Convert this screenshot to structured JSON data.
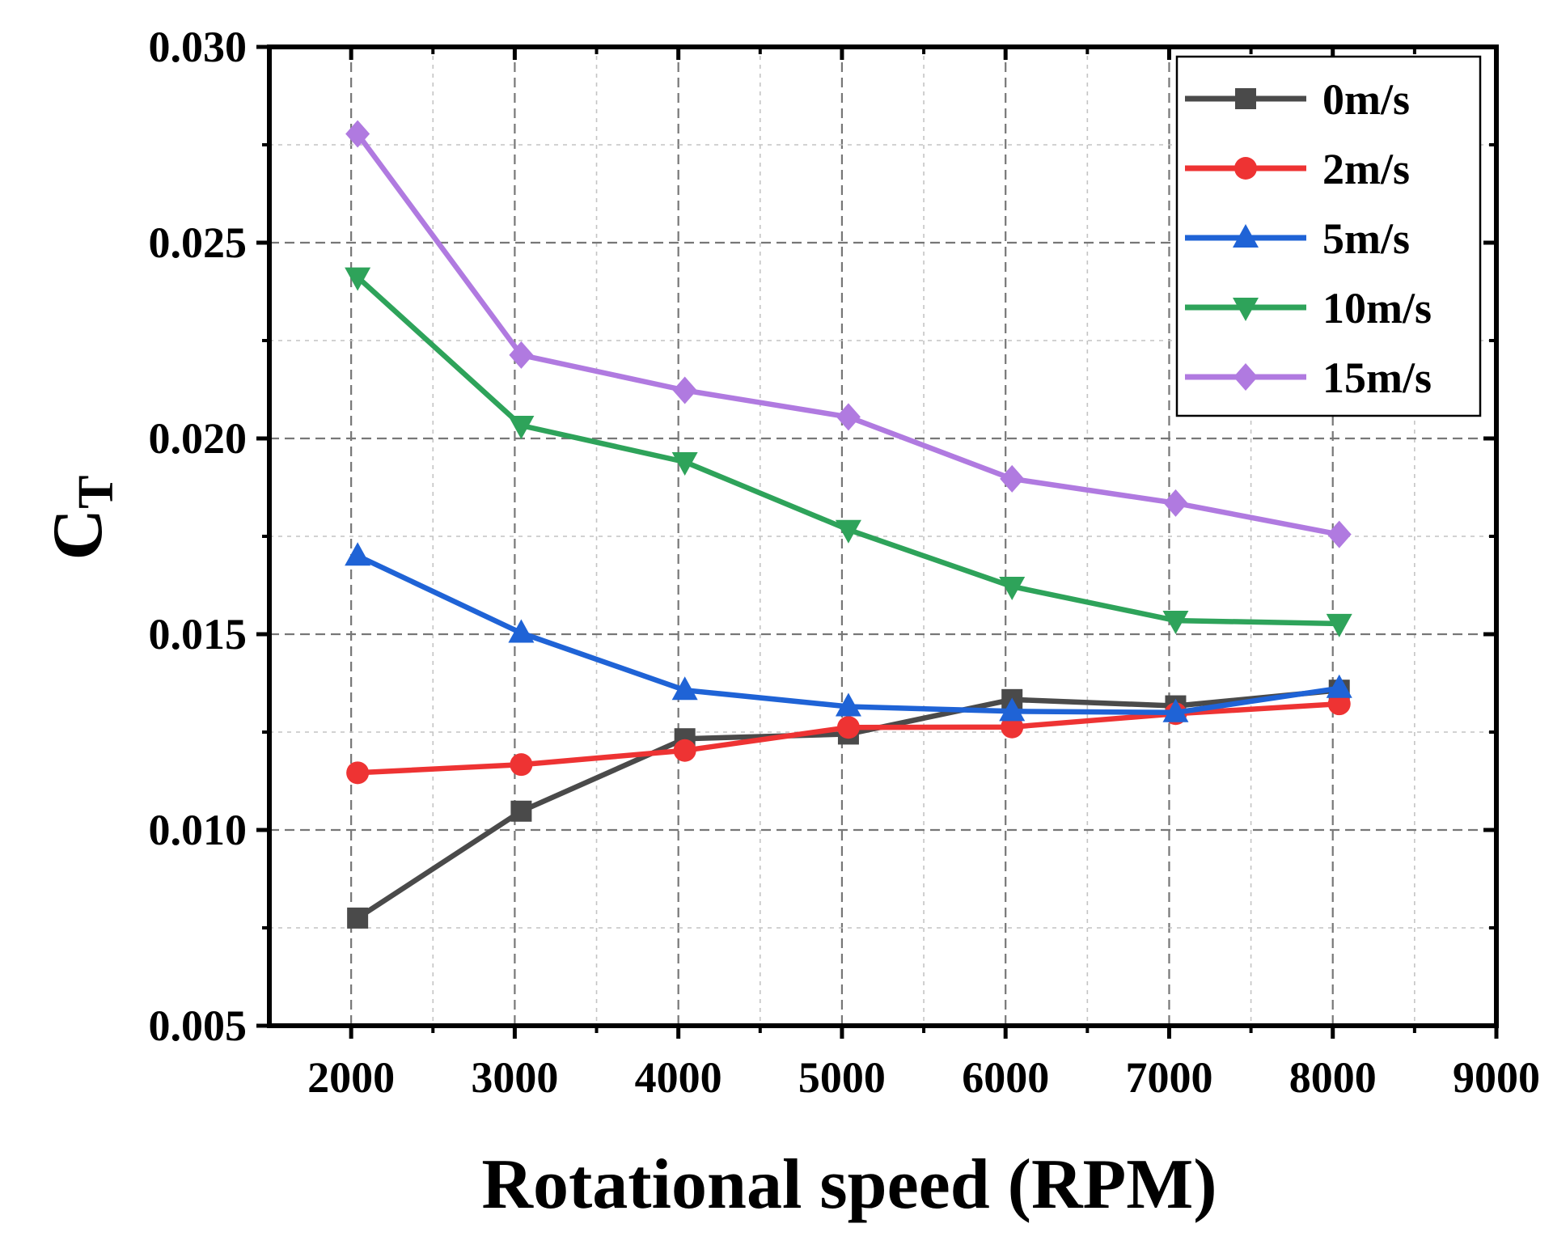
{
  "chart_data": {
    "type": "line",
    "title": "",
    "xlabel": "Rotational speed (RPM)",
    "ylabel_main": "C",
    "ylabel_sub": "T",
    "xlim": [
      1500,
      9000
    ],
    "ylim": [
      0.005,
      0.03
    ],
    "x_ticks": [
      2000,
      3000,
      4000,
      5000,
      6000,
      7000,
      8000,
      9000
    ],
    "x_tick_labels": [
      "2000",
      "3000",
      "4000",
      "5000",
      "6000",
      "7000",
      "8000",
      "9000"
    ],
    "y_ticks": [
      0.005,
      0.01,
      0.015,
      0.02,
      0.025,
      0.03
    ],
    "y_tick_labels": [
      "0.005",
      "0.010",
      "0.015",
      "0.020",
      "0.025",
      "0.030"
    ],
    "grid": true,
    "legend_position": "top-right",
    "x": [
      2000,
      3000,
      4000,
      5000,
      6000,
      7000,
      8000
    ],
    "series": [
      {
        "name": "0m/s",
        "color": "#4a4a4a",
        "marker": "square",
        "values": [
          0.00775,
          0.01048,
          0.01233,
          0.01245,
          0.01333,
          0.01317,
          0.01357
        ]
      },
      {
        "name": "2m/s",
        "color": "#ee3333",
        "marker": "circle",
        "values": [
          0.01146,
          0.01167,
          0.01203,
          0.01262,
          0.01263,
          0.01297,
          0.01322
        ]
      },
      {
        "name": "5m/s",
        "color": "#1f63d6",
        "marker": "triangle-up",
        "values": [
          0.017,
          0.01503,
          0.01357,
          0.01315,
          0.01303,
          0.013,
          0.01362
        ]
      },
      {
        "name": "10m/s",
        "color": "#2ea35a",
        "marker": "triangle-down",
        "values": [
          0.02412,
          0.02033,
          0.0194,
          0.01767,
          0.01622,
          0.01535,
          0.01527
        ]
      },
      {
        "name": "15m/s",
        "color": "#b07ae0",
        "marker": "diamond",
        "values": [
          0.02778,
          0.02213,
          0.02123,
          0.02055,
          0.01897,
          0.01835,
          0.01755
        ]
      }
    ]
  }
}
